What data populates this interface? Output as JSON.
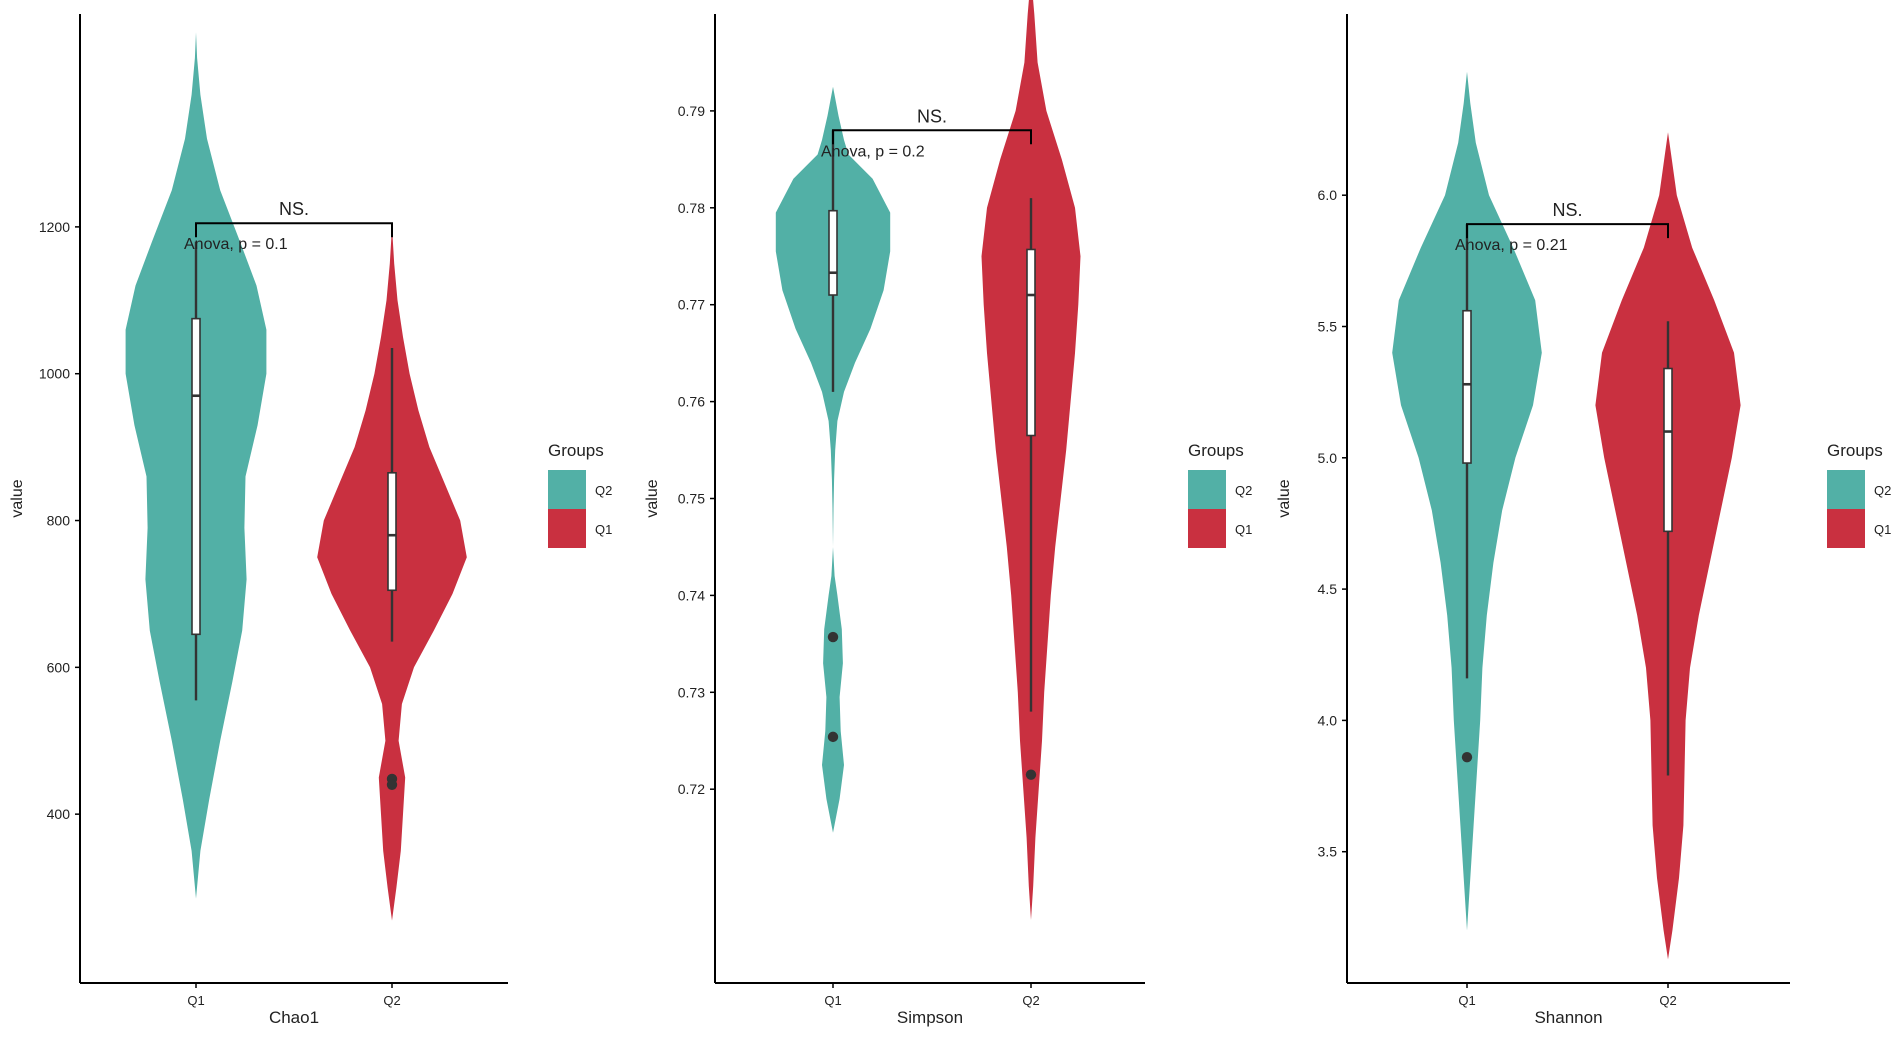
{
  "colors": {
    "Q2": "#52B0A6",
    "Q1": "#C93040",
    "axis": "#000000",
    "text": "#222222",
    "box_fill": "#ffffff",
    "box_stroke": "#333333"
  },
  "chart_data": [
    {
      "type": "violin",
      "xlabel": "Chao1",
      "ylabel": "value",
      "categories": [
        "Q1",
        "Q2"
      ],
      "yticks": [
        400,
        600,
        800,
        1000,
        1200
      ],
      "ylim": [
        170,
        1490
      ],
      "legend": {
        "title": "Groups",
        "entries": [
          "Q2",
          "Q1"
        ],
        "placement": "right"
      },
      "annotation": {
        "significance": "NS.",
        "test": "Anova, p = 0.1",
        "bracket_y": 1205
      },
      "series": [
        {
          "name": "Q2",
          "category": "Q1",
          "color": "Q2",
          "violin": {
            "y": [
              285,
              350,
              420,
              500,
              580,
              650,
              720,
              790,
              860,
              930,
              1000,
              1060,
              1120,
              1180,
              1250,
              1320,
              1380,
              1430,
              1465
            ],
            "w": [
              0,
              0.04,
              0.12,
              0.22,
              0.33,
              0.42,
              0.46,
              0.44,
              0.45,
              0.56,
              0.64,
              0.64,
              0.55,
              0.4,
              0.22,
              0.1,
              0.04,
              0.01,
              0
            ]
          },
          "box": {
            "whisker_low": 555,
            "q1": 645,
            "median": 970,
            "q3": 1075,
            "whisker_high": 1180
          },
          "outliers": []
        },
        {
          "name": "Q1",
          "category": "Q2",
          "color": "Q1",
          "violin": {
            "y": [
              255,
              300,
              350,
              400,
              450,
              500,
              550,
              600,
              650,
              700,
              750,
              800,
              850,
              900,
              950,
              1000,
              1050,
              1100,
              1150,
              1200
            ],
            "w": [
              0,
              0.04,
              0.08,
              0.1,
              0.12,
              0.06,
              0.09,
              0.2,
              0.38,
              0.55,
              0.68,
              0.62,
              0.48,
              0.34,
              0.24,
              0.16,
              0.1,
              0.05,
              0.02,
              0
            ]
          },
          "box": {
            "whisker_low": 635,
            "q1": 705,
            "median": 780,
            "q3": 865,
            "whisker_high": 1035
          },
          "outliers": [
            448,
            440
          ]
        }
      ]
    },
    {
      "type": "violin",
      "xlabel": "Simpson",
      "ylabel": "value",
      "categories": [
        "Q1",
        "Q2"
      ],
      "yticks": [
        0.72,
        0.73,
        0.74,
        0.75,
        0.76,
        0.77,
        0.78,
        0.79
      ],
      "ylim": [
        0.7,
        0.8
      ],
      "legend": {
        "title": "Groups",
        "entries": [
          "Q2",
          "Q1"
        ],
        "placement": "right"
      },
      "annotation": {
        "significance": "NS.",
        "test": "Anova, p = 0.2",
        "bracket_y": 0.788
      },
      "series": [
        {
          "name": "Q2",
          "category": "Q1",
          "color": "Q2",
          "violin": {
            "y": [
              0.7155,
              0.719,
              0.7225,
              0.726,
              0.7295,
              0.733,
              0.7365,
              0.74,
              0.742,
              0.745,
              0.749,
              0.752,
              0.755,
              0.758,
              0.761,
              0.764,
              0.7675,
              0.7715,
              0.7755,
              0.7795,
              0.783,
              0.7855,
              0.787,
              0.7895,
              0.7925
            ],
            "w": [
              0,
              0.06,
              0.1,
              0.07,
              0.06,
              0.09,
              0.08,
              0.04,
              0.015,
              0,
              0.005,
              0.01,
              0.02,
              0.04,
              0.1,
              0.2,
              0.34,
              0.46,
              0.52,
              0.52,
              0.36,
              0.14,
              0.1,
              0.05,
              0
            ]
          },
          "box": {
            "whisker_low": 0.761,
            "q1": 0.771,
            "median": 0.7733,
            "q3": 0.7797,
            "whisker_high": 0.788
          },
          "outliers": [
            0.7357,
            0.7254
          ]
        },
        {
          "name": "Q1",
          "category": "Q2",
          "color": "Q1",
          "violin": {
            "y": [
              0.7065,
              0.71,
              0.715,
              0.72,
              0.725,
              0.73,
              0.735,
              0.74,
              0.745,
              0.75,
              0.755,
              0.76,
              0.765,
              0.77,
              0.775,
              0.78,
              0.785,
              0.79,
              0.795,
              0.8,
              0.804
            ],
            "w": [
              0,
              0.02,
              0.04,
              0.07,
              0.1,
              0.12,
              0.15,
              0.18,
              0.22,
              0.27,
              0.32,
              0.36,
              0.4,
              0.43,
              0.45,
              0.4,
              0.28,
              0.14,
              0.06,
              0.03,
              0
            ]
          },
          "box": {
            "whisker_low": 0.728,
            "q1": 0.7565,
            "median": 0.771,
            "q3": 0.7757,
            "whisker_high": 0.781
          },
          "outliers": [
            0.7215
          ]
        }
      ]
    },
    {
      "type": "violin",
      "xlabel": "Shannon",
      "ylabel": "value",
      "categories": [
        "Q1",
        "Q2"
      ],
      "yticks": [
        3.5,
        4.0,
        4.5,
        5.0,
        5.5,
        6.0
      ],
      "ylim": [
        3.0,
        6.69
      ],
      "legend": {
        "title": "Groups",
        "entries": [
          "Q2",
          "Q1"
        ],
        "placement": "right"
      },
      "annotation": {
        "significance": "NS.",
        "test": "Anova, p = 0.21",
        "bracket_y": 5.89
      },
      "series": [
        {
          "name": "Q2",
          "category": "Q1",
          "color": "Q2",
          "violin": {
            "y": [
              3.2,
              3.4,
              3.6,
              3.8,
              4.0,
              4.2,
              4.4,
              4.6,
              4.8,
              5.0,
              5.2,
              5.4,
              5.6,
              5.8,
              6.0,
              6.2,
              6.35,
              6.47
            ],
            "w": [
              0,
              0.03,
              0.06,
              0.09,
              0.12,
              0.14,
              0.18,
              0.24,
              0.32,
              0.44,
              0.6,
              0.68,
              0.62,
              0.42,
              0.2,
              0.08,
              0.03,
              0
            ]
          },
          "box": {
            "whisker_low": 4.16,
            "q1": 4.98,
            "median": 5.28,
            "q3": 5.56,
            "whisker_high": 5.89
          },
          "outliers": [
            3.86
          ]
        },
        {
          "name": "Q1",
          "category": "Q2",
          "color": "Q1",
          "violin": {
            "y": [
              3.09,
              3.2,
              3.4,
              3.6,
              3.8,
              4.0,
              4.2,
              4.4,
              4.6,
              4.8,
              5.0,
              5.2,
              5.4,
              5.6,
              5.8,
              6.0,
              6.15,
              6.24
            ],
            "w": [
              0,
              0.04,
              0.1,
              0.14,
              0.15,
              0.16,
              0.2,
              0.28,
              0.38,
              0.48,
              0.58,
              0.66,
              0.6,
              0.42,
              0.22,
              0.08,
              0.03,
              0
            ]
          },
          "box": {
            "whisker_low": 3.79,
            "q1": 4.72,
            "median": 5.1,
            "q3": 5.34,
            "whisker_high": 5.52
          },
          "outliers": []
        }
      ]
    }
  ]
}
